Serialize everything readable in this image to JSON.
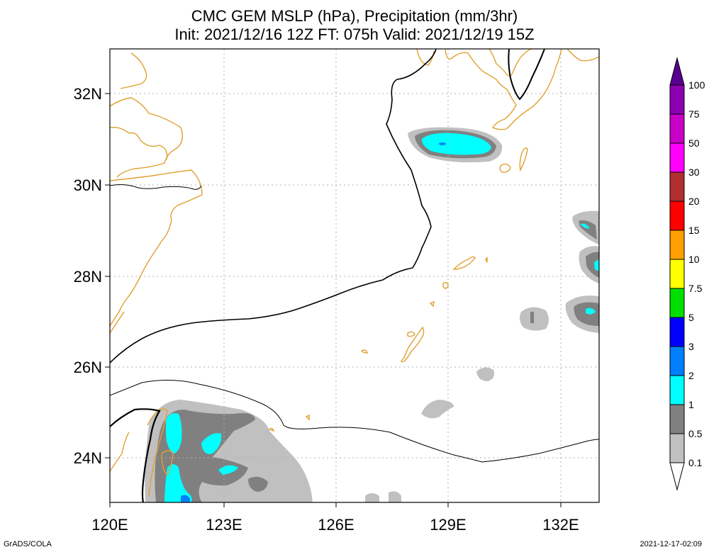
{
  "title": {
    "line1": "CMC GEM MSLP (hPa), Precipitation (mm/3hr)",
    "line2": "Init: 2021/12/16 12Z  FT: 075h  Valid: 2021/12/19 15Z"
  },
  "axes": {
    "x_ticks": [
      "120E",
      "123E",
      "126E",
      "129E",
      "132E"
    ],
    "y_ticks": [
      "32N",
      "30N",
      "28N",
      "26N",
      "24N"
    ]
  },
  "colorbar": {
    "labels": [
      "100",
      "75",
      "50",
      "30",
      "20",
      "15",
      "10",
      "7.5",
      "5",
      "3",
      "2",
      "1",
      "0.5",
      "0.1"
    ],
    "colors": [
      "#5a0090",
      "#8c00b4",
      "#c800c8",
      "#ff00ff",
      "#b03030",
      "#ff0000",
      "#ffa000",
      "#ffff00",
      "#00e000",
      "#0000ff",
      "#0080ff",
      "#00ffff",
      "#808080",
      "#c0c0c0"
    ]
  },
  "colors": {
    "coast": "#e0a030",
    "isobar": "#000000",
    "grid": "#b0b0b0"
  },
  "footer": {
    "left": "GrADS/COLA",
    "right": "2021-12-17-02:09"
  }
}
